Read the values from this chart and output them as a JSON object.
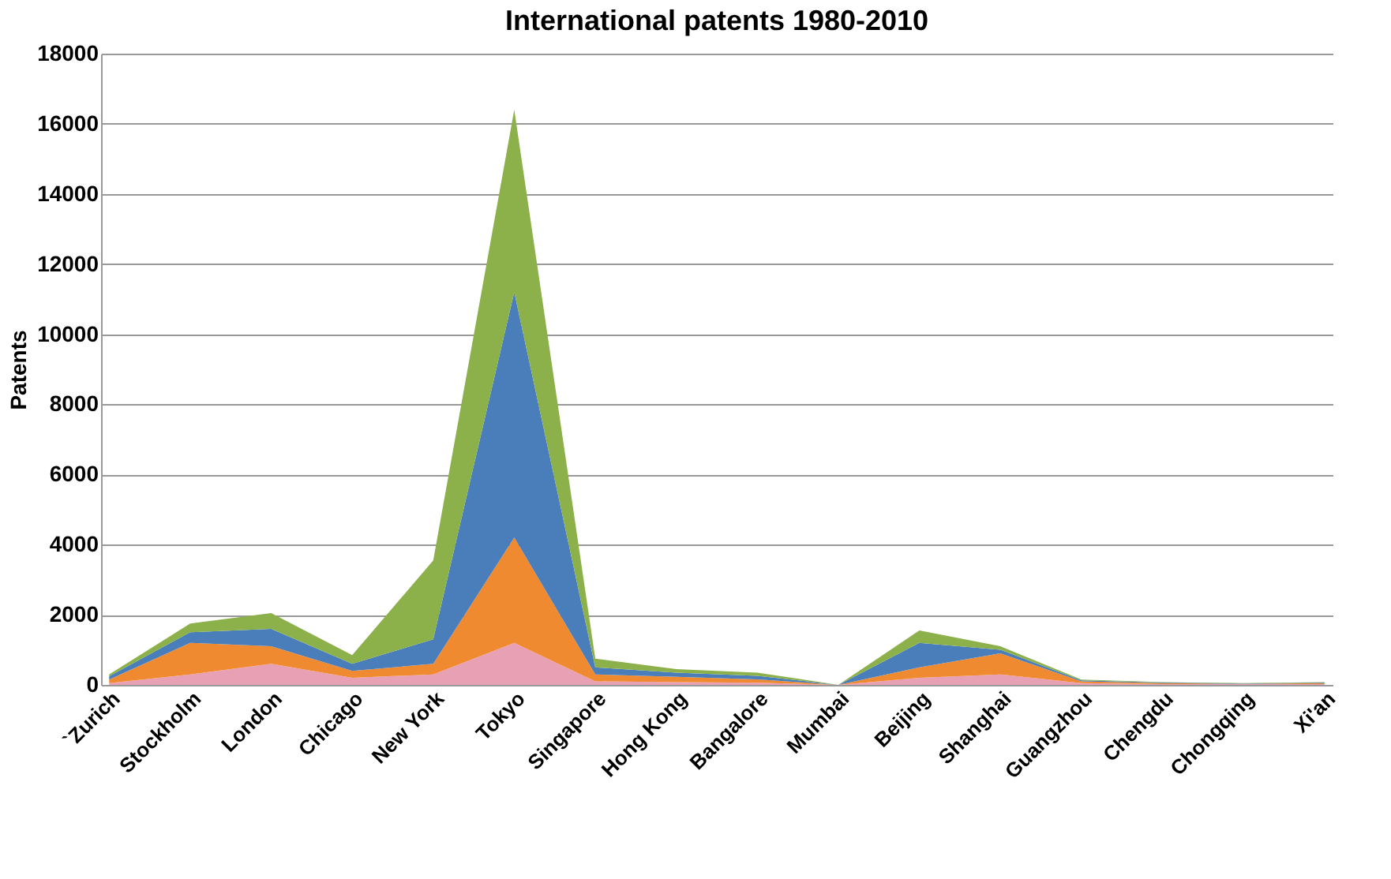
{
  "chart_data": {
    "type": "area",
    "title": "International patents 1980-2010",
    "ylabel": "Patents",
    "stacked": true,
    "grid": "y",
    "legend": false,
    "categories": [
      "`Zurich",
      "Stockholm",
      "London",
      "Chicago",
      "New York",
      "Tokyo",
      "Singapore",
      "Hong Kong",
      "Bangalore",
      "Mumbai",
      "Beijing",
      "Shanghai",
      "Guangzhou",
      "Chengdu",
      "Chongqing",
      "Xi'an"
    ],
    "ylim": [
      0,
      18000
    ],
    "yticks": [
      0,
      2000,
      4000,
      6000,
      8000,
      10000,
      12000,
      14000,
      16000,
      18000
    ],
    "series": [
      {
        "color": "#e8a0b4",
        "values": [
          50,
          300,
          600,
          200,
          300,
          1200,
          100,
          80,
          60,
          0,
          200,
          300,
          50,
          20,
          20,
          20
        ]
      },
      {
        "color": "#f08a30",
        "values": [
          100,
          900,
          500,
          200,
          300,
          3000,
          200,
          150,
          100,
          0,
          300,
          600,
          50,
          30,
          10,
          30
        ]
      },
      {
        "color": "#4a7ebb",
        "values": [
          100,
          300,
          500,
          200,
          700,
          7000,
          200,
          120,
          100,
          0,
          700,
          100,
          30,
          20,
          10,
          20
        ]
      },
      {
        "color": "#8cb04a",
        "values": [
          50,
          250,
          450,
          250,
          2250,
          5200,
          250,
          100,
          90,
          0,
          350,
          100,
          20,
          10,
          10,
          10
        ]
      }
    ]
  }
}
